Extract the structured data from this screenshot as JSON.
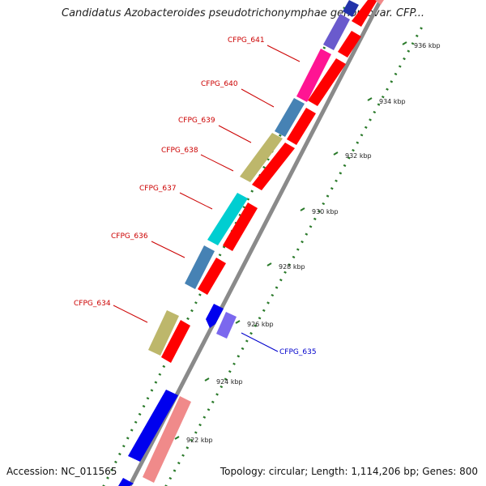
{
  "title": "Candidatus Azobacteroides pseudotrichonymphae genomovar. CFP...",
  "footer": {
    "accession": "Accession: NC_011565",
    "summary": "Topology: circular; Length: 1,114,206 bp; Genes: 800"
  },
  "colors": {
    "forward_label": "#cc0000",
    "reverse_label": "#0000cc",
    "backbone": "#8a8a8a",
    "tick": "#2a7a2a",
    "cds": "#ff0000",
    "cds_pink": "#f08a8a"
  },
  "kbp_ticks": [
    {
      "label": "922 kbp"
    },
    {
      "label": "924 kbp"
    },
    {
      "label": "926 kbp"
    },
    {
      "label": "928 kbp"
    },
    {
      "label": "930 kbp"
    },
    {
      "label": "932 kbp"
    },
    {
      "label": "934 kbp"
    },
    {
      "label": "936 kbp"
    }
  ],
  "gene_labels": [
    {
      "name": "CFPG_641",
      "strand": "forward"
    },
    {
      "name": "CFPG_640",
      "strand": "forward"
    },
    {
      "name": "CFPG_639",
      "strand": "forward"
    },
    {
      "name": "CFPG_638",
      "strand": "forward"
    },
    {
      "name": "CFPG_637",
      "strand": "forward"
    },
    {
      "name": "CFPG_636",
      "strand": "forward"
    },
    {
      "name": "CFPG_634",
      "strand": "forward"
    },
    {
      "name": "CFPG_635",
      "strand": "reverse"
    }
  ]
}
